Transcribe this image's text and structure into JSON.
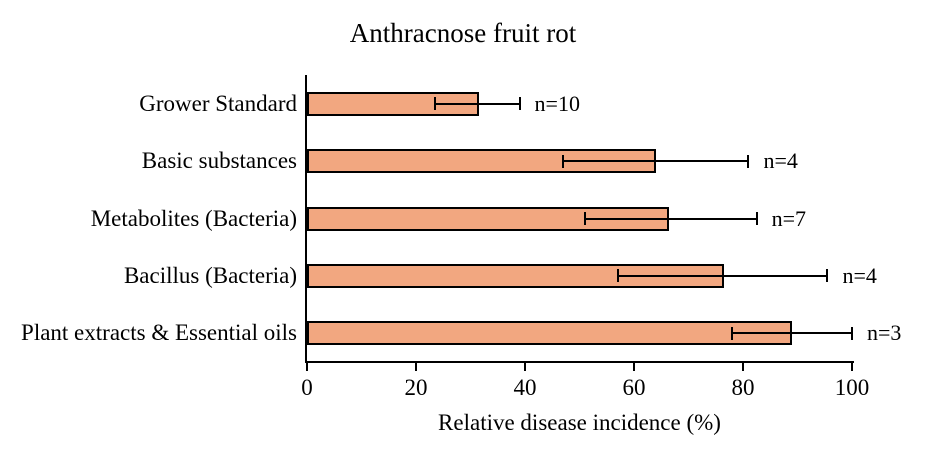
{
  "title": "Anthracnose fruit rot",
  "chart_data": {
    "type": "bar",
    "orientation": "horizontal",
    "title": "Anthracnose fruit rot",
    "xlabel": "Relative disease incidence (%)",
    "ylabel": "",
    "xlim": [
      0,
      100
    ],
    "x_ticks": [
      0,
      20,
      40,
      60,
      80,
      100
    ],
    "grid": false,
    "legend": false,
    "categories": [
      "Grower Standard",
      "Basic substances",
      "Metabolites (Bacteria)",
      "Bacillus (Bacteria)",
      "Plant extracts & Essential oils"
    ],
    "values": [
      31.5,
      64,
      66.5,
      76.5,
      89
    ],
    "error_low": [
      23.5,
      47,
      51,
      57,
      78
    ],
    "error_high": [
      39,
      81,
      82.5,
      95.5,
      100
    ],
    "annotations": [
      "n=10",
      "n=4",
      "n=7",
      "n=4",
      "n=3"
    ]
  },
  "colors": {
    "bar_fill": "#F2A780",
    "bar_border": "#000000",
    "axis": "#000000",
    "text": "#000000",
    "background": "#FFFFFF"
  }
}
